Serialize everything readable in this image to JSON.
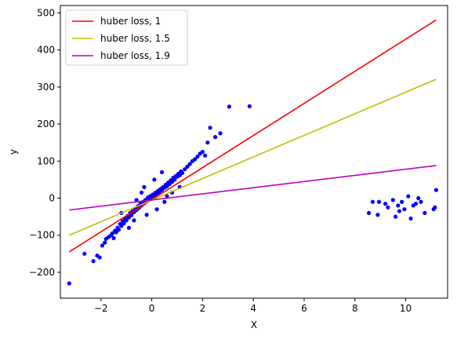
{
  "chart_data": {
    "type": "scatter",
    "title": "",
    "xlabel": "X",
    "ylabel": "y",
    "xlim": [
      -3.6,
      11.65
    ],
    "ylim": [
      -270,
      520
    ],
    "xticks": [
      -2,
      0,
      2,
      4,
      6,
      8,
      10
    ],
    "yticks": [
      -200,
      -100,
      0,
      100,
      200,
      300,
      400,
      500
    ],
    "xtick_labels": [
      "−2",
      "0",
      "2",
      "4",
      "6",
      "8",
      "10"
    ],
    "ytick_labels": [
      "−200",
      "−100",
      "0",
      "100",
      "200",
      "300",
      "400",
      "500"
    ],
    "grid": false,
    "legend_position": "top-left",
    "lines": [
      {
        "name": "huber loss, 1",
        "color": "#ff0000",
        "x": [
          -3.25,
          11.2
        ],
        "y": [
          -145,
          481
        ]
      },
      {
        "name": "huber loss, 1.5",
        "color": "#bfbf00",
        "x": [
          -3.25,
          11.2
        ],
        "y": [
          -100,
          321
        ]
      },
      {
        "name": "huber loss, 1.9",
        "color": "#bf00bf",
        "x": [
          -3.25,
          11.2
        ],
        "y": [
          -32,
          88
        ]
      }
    ],
    "scatter": {
      "color": "#0000ff",
      "points": [
        [
          -3.25,
          -230
        ],
        [
          -2.65,
          -150
        ],
        [
          -2.3,
          -170
        ],
        [
          -2.15,
          -155
        ],
        [
          -2.05,
          -160
        ],
        [
          -1.95,
          -128
        ],
        [
          -1.85,
          -120
        ],
        [
          -1.8,
          -110
        ],
        [
          -1.7,
          -105
        ],
        [
          -1.6,
          -100
        ],
        [
          -1.55,
          -95
        ],
        [
          -1.5,
          -108
        ],
        [
          -1.45,
          -88
        ],
        [
          -1.4,
          -92
        ],
        [
          -1.35,
          -80
        ],
        [
          -1.3,
          -85
        ],
        [
          -1.25,
          -70
        ],
        [
          -1.2,
          -75
        ],
        [
          -1.15,
          -62
        ],
        [
          -1.1,
          -68
        ],
        [
          -1.05,
          -55
        ],
        [
          -1.0,
          -60
        ],
        [
          -0.95,
          -48
        ],
        [
          -0.9,
          -52
        ],
        [
          -0.85,
          -40
        ],
        [
          -0.8,
          -46
        ],
        [
          -0.75,
          -35
        ],
        [
          -0.7,
          -38
        ],
        [
          -0.65,
          -28
        ],
        [
          -0.6,
          -32
        ],
        [
          -0.55,
          -22
        ],
        [
          -0.5,
          -26
        ],
        [
          -0.45,
          -15
        ],
        [
          -0.4,
          -20
        ],
        [
          -0.35,
          -10
        ],
        [
          -0.3,
          -14
        ],
        [
          -0.25,
          -5
        ],
        [
          -0.2,
          -8
        ],
        [
          -0.15,
          2
        ],
        [
          -0.1,
          -2
        ],
        [
          -0.05,
          6
        ],
        [
          0.0,
          2
        ],
        [
          0.05,
          10
        ],
        [
          0.1,
          6
        ],
        [
          0.15,
          15
        ],
        [
          0.2,
          12
        ],
        [
          0.25,
          20
        ],
        [
          0.3,
          16
        ],
        [
          0.35,
          25
        ],
        [
          0.4,
          22
        ],
        [
          0.45,
          30
        ],
        [
          0.5,
          28
        ],
        [
          0.55,
          36
        ],
        [
          0.6,
          32
        ],
        [
          0.65,
          42
        ],
        [
          0.7,
          38
        ],
        [
          0.75,
          48
        ],
        [
          0.8,
          44
        ],
        [
          0.85,
          55
        ],
        [
          0.9,
          50
        ],
        [
          0.95,
          60
        ],
        [
          1.0,
          58
        ],
        [
          1.05,
          66
        ],
        [
          1.1,
          62
        ],
        [
          1.15,
          72
        ],
        [
          1.2,
          68
        ],
        [
          1.3,
          78
        ],
        [
          1.4,
          85
        ],
        [
          1.5,
          92
        ],
        [
          1.6,
          100
        ],
        [
          1.7,
          105
        ],
        [
          1.8,
          112
        ],
        [
          1.9,
          120
        ],
        [
          2.0,
          125
        ],
        [
          2.1,
          115
        ],
        [
          2.2,
          150
        ],
        [
          2.3,
          190
        ],
        [
          2.5,
          165
        ],
        [
          2.7,
          175
        ],
        [
          3.05,
          247
        ],
        [
          3.85,
          248
        ],
        [
          -0.9,
          -80
        ],
        [
          -0.6,
          -5
        ],
        [
          -0.3,
          30
        ],
        [
          0.2,
          -30
        ],
        [
          0.5,
          -10
        ],
        [
          0.8,
          15
        ],
        [
          1.1,
          30
        ],
        [
          -1.2,
          -40
        ],
        [
          -0.7,
          -60
        ],
        [
          0.1,
          50
        ],
        [
          0.4,
          70
        ],
        [
          -0.2,
          -45
        ],
        [
          0.6,
          5
        ],
        [
          -0.4,
          15
        ],
        [
          8.55,
          -40
        ],
        [
          8.7,
          -10
        ],
        [
          8.9,
          -45
        ],
        [
          8.95,
          -10
        ],
        [
          9.2,
          -15
        ],
        [
          9.3,
          -25
        ],
        [
          9.5,
          -5
        ],
        [
          9.6,
          -50
        ],
        [
          9.7,
          -20
        ],
        [
          9.75,
          -35
        ],
        [
          9.85,
          -10
        ],
        [
          9.95,
          -30
        ],
        [
          10.1,
          5
        ],
        [
          10.2,
          -55
        ],
        [
          10.3,
          -20
        ],
        [
          10.4,
          -15
        ],
        [
          10.5,
          0
        ],
        [
          10.6,
          -10
        ],
        [
          10.75,
          -40
        ],
        [
          11.1,
          -30
        ],
        [
          11.15,
          -25
        ],
        [
          11.2,
          22
        ]
      ]
    }
  }
}
